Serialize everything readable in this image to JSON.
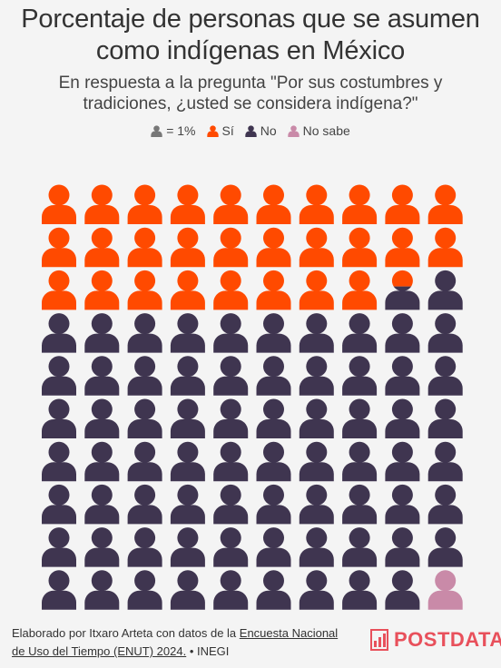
{
  "header": {
    "title": "Porcentaje de personas que se asumen como indígenas en México",
    "subtitle": "En respuesta a la pregunta \"Por sus costumbres y tradiciones, ¿usted se considera indígena?\""
  },
  "legend": {
    "unit_label": "= 1%",
    "items": [
      {
        "label": "Sí",
        "color": "#ff4a00",
        "icon": "person-icon"
      },
      {
        "label": "No",
        "color": "#3f3550",
        "icon": "person-icon"
      },
      {
        "label": "No sabe",
        "color": "#c98aa8",
        "icon": "person-icon"
      }
    ],
    "unit_color": "#777777"
  },
  "chart_data": {
    "type": "waffle",
    "unit": "1%",
    "total": 100,
    "columns": 10,
    "rows": 10,
    "categories": [
      "Sí",
      "No",
      "No sabe"
    ],
    "values": [
      28.3,
      70.7,
      1.0
    ],
    "colors": [
      "#ff4a00",
      "#3f3550",
      "#c98aa8"
    ]
  },
  "footer": {
    "credit_prefix": "Elaborado por Itxaro Arteta con datos de la ",
    "credit_link": "Encuesta Nacional de Uso del Tiempo (ENUT) 2024.",
    "credit_suffix": " • INEGI",
    "brand": "POSTDATA",
    "brand_color": "#e8505b"
  }
}
